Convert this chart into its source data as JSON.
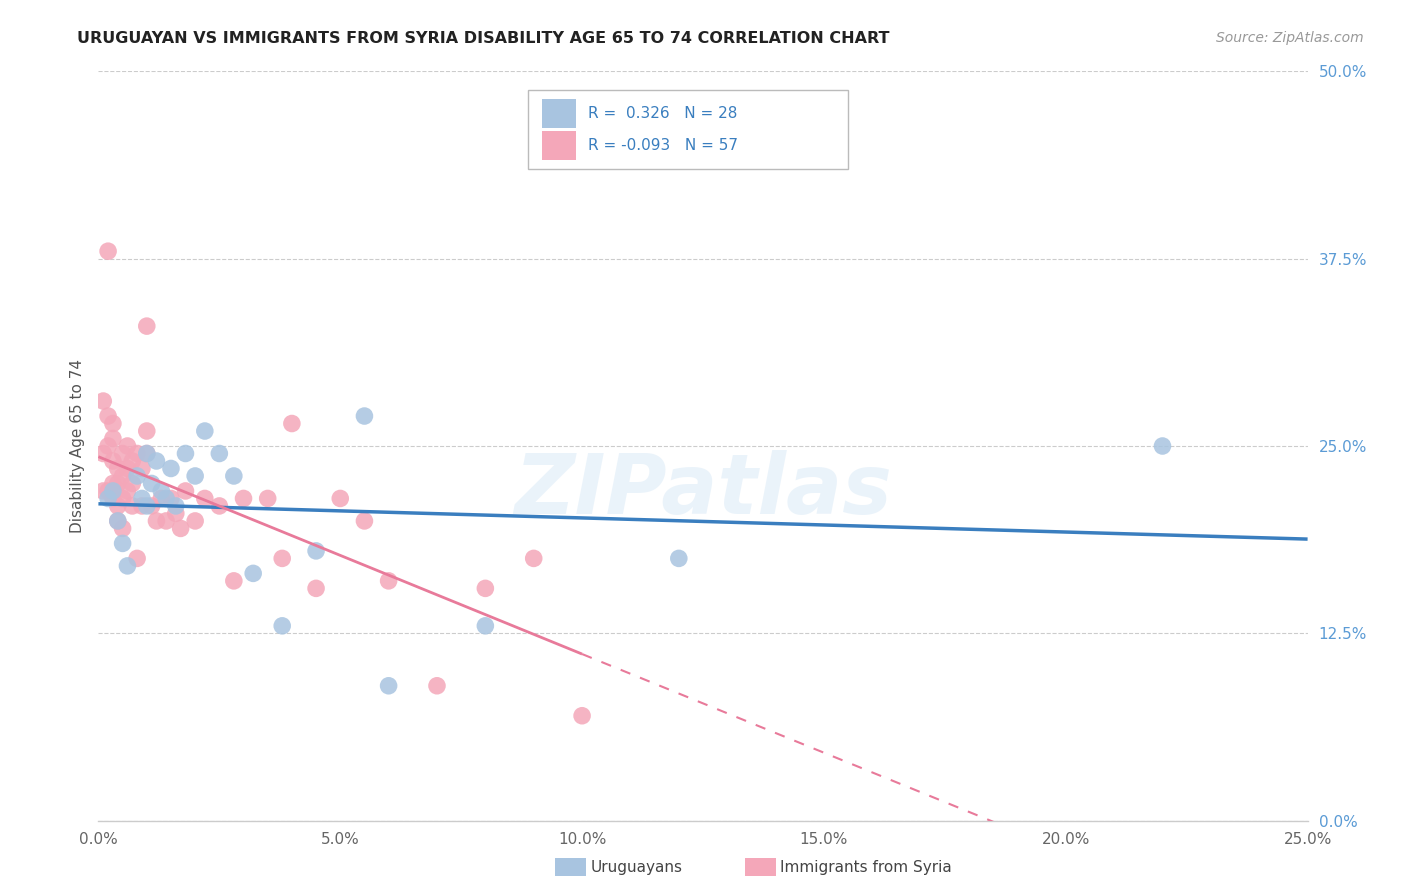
{
  "title": "URUGUAYAN VS IMMIGRANTS FROM SYRIA DISABILITY AGE 65 TO 74 CORRELATION CHART",
  "source": "Source: ZipAtlas.com",
  "xlabel_vals": [
    0.0,
    0.05,
    0.1,
    0.15,
    0.2,
    0.25
  ],
  "xlabel_labels": [
    "0.0%",
    "5.0%",
    "10.0%",
    "15.0%",
    "20.0%",
    "25.0%"
  ],
  "ylabel_vals": [
    0.0,
    0.125,
    0.25,
    0.375,
    0.5
  ],
  "ylabel_labels": [
    "0.0%",
    "12.5%",
    "25.0%",
    "37.5%",
    "50.0%"
  ],
  "xlim": [
    0.0,
    0.25
  ],
  "ylim": [
    0.0,
    0.5
  ],
  "legend_label1": "Uruguayans",
  "legend_label2": "Immigrants from Syria",
  "r1": 0.326,
  "n1": 28,
  "r2": -0.093,
  "n2": 57,
  "color_blue": "#a8c4e0",
  "color_pink": "#f4a7b9",
  "line_blue": "#3a7ebf",
  "line_pink": "#e87a9a",
  "watermark": "ZIPatlas",
  "uruguayan_x": [
    0.002,
    0.003,
    0.004,
    0.005,
    0.006,
    0.008,
    0.009,
    0.01,
    0.01,
    0.011,
    0.012,
    0.013,
    0.014,
    0.015,
    0.016,
    0.018,
    0.02,
    0.022,
    0.025,
    0.028,
    0.032,
    0.038,
    0.045,
    0.055,
    0.06,
    0.08,
    0.12,
    0.22
  ],
  "uruguayan_y": [
    0.215,
    0.22,
    0.2,
    0.185,
    0.17,
    0.23,
    0.215,
    0.21,
    0.245,
    0.225,
    0.24,
    0.22,
    0.215,
    0.235,
    0.21,
    0.245,
    0.23,
    0.26,
    0.245,
    0.23,
    0.165,
    0.13,
    0.18,
    0.27,
    0.09,
    0.13,
    0.175,
    0.25
  ],
  "syria_x": [
    0.001,
    0.001,
    0.001,
    0.002,
    0.002,
    0.002,
    0.002,
    0.003,
    0.003,
    0.003,
    0.003,
    0.003,
    0.004,
    0.004,
    0.004,
    0.004,
    0.005,
    0.005,
    0.005,
    0.005,
    0.006,
    0.006,
    0.006,
    0.007,
    0.007,
    0.007,
    0.008,
    0.008,
    0.009,
    0.009,
    0.01,
    0.01,
    0.01,
    0.011,
    0.012,
    0.013,
    0.014,
    0.015,
    0.016,
    0.017,
    0.018,
    0.02,
    0.022,
    0.025,
    0.028,
    0.03,
    0.035,
    0.038,
    0.04,
    0.045,
    0.05,
    0.055,
    0.06,
    0.07,
    0.08,
    0.09,
    0.1
  ],
  "syria_y": [
    0.28,
    0.245,
    0.22,
    0.38,
    0.27,
    0.25,
    0.22,
    0.265,
    0.255,
    0.24,
    0.225,
    0.215,
    0.235,
    0.225,
    0.21,
    0.2,
    0.245,
    0.23,
    0.215,
    0.195,
    0.25,
    0.235,
    0.22,
    0.24,
    0.225,
    0.21,
    0.245,
    0.175,
    0.235,
    0.21,
    0.26,
    0.245,
    0.33,
    0.21,
    0.2,
    0.215,
    0.2,
    0.215,
    0.205,
    0.195,
    0.22,
    0.2,
    0.215,
    0.21,
    0.16,
    0.215,
    0.215,
    0.175,
    0.265,
    0.155,
    0.215,
    0.2,
    0.16,
    0.09,
    0.155,
    0.175,
    0.07
  ]
}
